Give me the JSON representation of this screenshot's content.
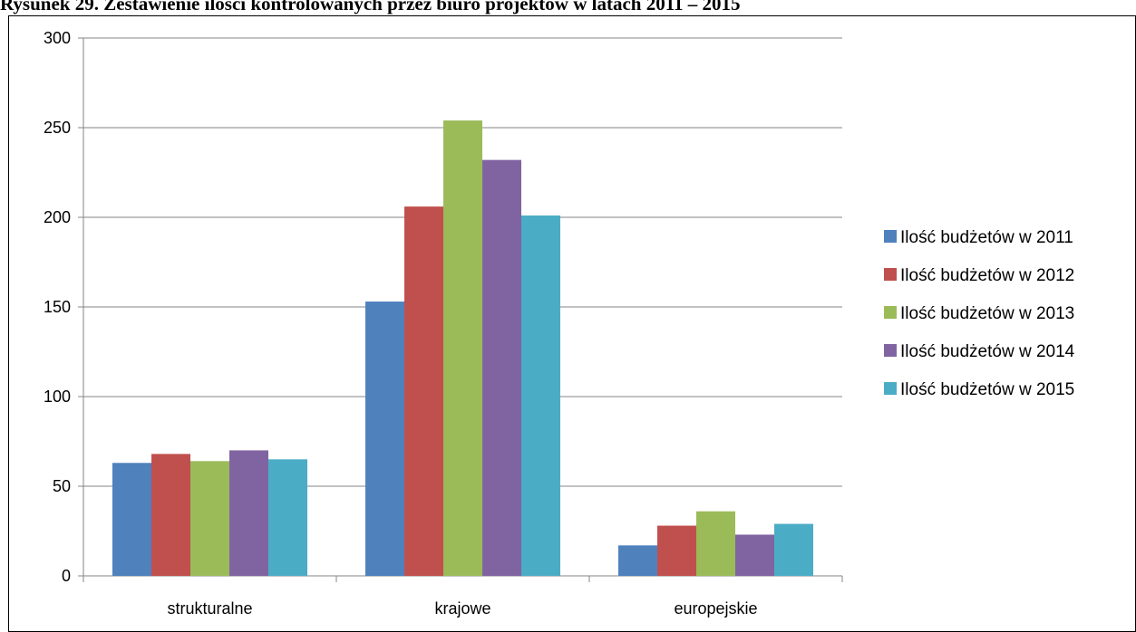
{
  "page": {
    "title": "Rysunek 29. Zestawienie ilości kontrolowanych przez biuro projektów w latach 2011 – 2015"
  },
  "chart_data": {
    "type": "bar",
    "title": "",
    "xlabel": "",
    "ylabel": "",
    "categories": [
      "strukturalne",
      "krajowe",
      "europejskie"
    ],
    "series": [
      {
        "name": "Ilość budżetów w 2011",
        "color": "#4F81BD",
        "values": [
          63,
          153,
          17
        ]
      },
      {
        "name": "Ilość budżetów w 2012",
        "color": "#C0504D",
        "values": [
          68,
          206,
          28
        ]
      },
      {
        "name": "Ilość budżetów w 2013",
        "color": "#9BBB59",
        "values": [
          64,
          254,
          36
        ]
      },
      {
        "name": "Ilość budżetów w 2014",
        "color": "#8064A2",
        "values": [
          70,
          232,
          23
        ]
      },
      {
        "name": "Ilość budżetów w 2015",
        "color": "#4BACC6",
        "values": [
          65,
          201,
          29
        ]
      }
    ],
    "ylim": [
      0,
      300
    ],
    "yticks": [
      0,
      50,
      100,
      150,
      200,
      250,
      300
    ],
    "grid": true,
    "legend": "right"
  }
}
